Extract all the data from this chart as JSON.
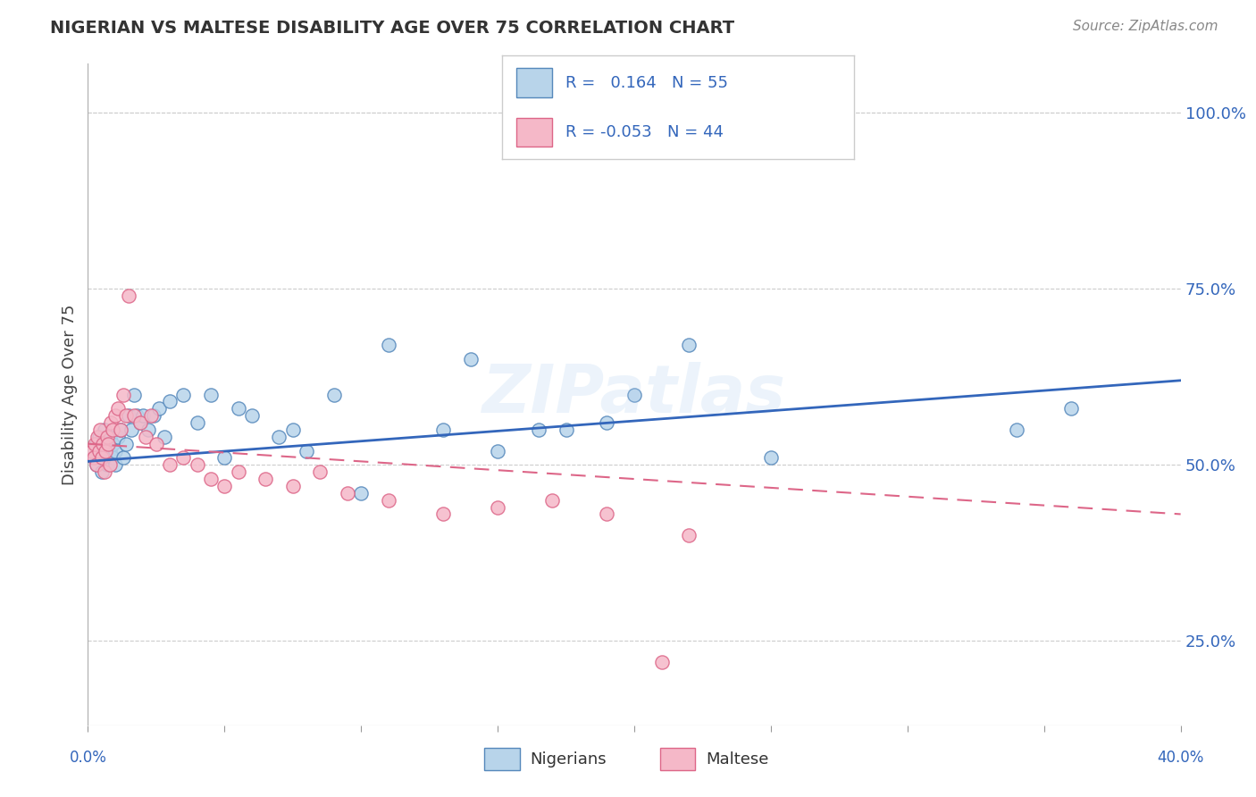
{
  "title": "NIGERIAN VS MALTESE DISABILITY AGE OVER 75 CORRELATION CHART",
  "source": "Source: ZipAtlas.com",
  "ylabel": "Disability Age Over 75",
  "xlim": [
    0.0,
    40.0
  ],
  "ylim": [
    13.0,
    107.0
  ],
  "yticks": [
    25.0,
    50.0,
    75.0,
    100.0
  ],
  "ytick_labels": [
    "25.0%",
    "50.0%",
    "75.0%",
    "100.0%"
  ],
  "nigerian_color": "#b8d4ea",
  "maltese_color": "#f5b8c8",
  "nigerian_edge": "#5588bb",
  "maltese_edge": "#dd6688",
  "trend_blue": "#3366bb",
  "trend_pink": "#dd6688",
  "r_nigerian": 0.164,
  "n_nigerian": 55,
  "r_maltese": -0.053,
  "n_maltese": 44,
  "legend_label_nigerian": "Nigerians",
  "legend_label_maltese": "Maltese",
  "background_color": "#ffffff",
  "watermark": "ZIPatlas",
  "nigerian_x": [
    0.2,
    0.3,
    0.3,
    0.4,
    0.4,
    0.5,
    0.5,
    0.6,
    0.6,
    0.7,
    0.7,
    0.8,
    0.8,
    0.9,
    0.9,
    1.0,
    1.0,
    1.1,
    1.2,
    1.3,
    1.4,
    1.5,
    1.6,
    1.7,
    1.8,
    1.9,
    2.0,
    2.2,
    2.4,
    2.6,
    2.8,
    3.0,
    3.5,
    4.0,
    4.5,
    5.0,
    5.5,
    6.0,
    7.0,
    7.5,
    8.0,
    9.0,
    10.0,
    11.0,
    13.0,
    14.0,
    15.0,
    16.5,
    17.5,
    19.0,
    20.0,
    22.0,
    25.0,
    34.0,
    36.0
  ],
  "nigerian_y": [
    51,
    50,
    53,
    52,
    54,
    49,
    53,
    51,
    55,
    50,
    53,
    52,
    54,
    51,
    53,
    50,
    52,
    54,
    55,
    51,
    53,
    57,
    55,
    60,
    57,
    56,
    57,
    55,
    57,
    58,
    54,
    59,
    60,
    56,
    60,
    51,
    58,
    57,
    54,
    55,
    52,
    60,
    46,
    67,
    55,
    65,
    52,
    55,
    55,
    56,
    60,
    67,
    51,
    55,
    58
  ],
  "maltese_x": [
    0.15,
    0.2,
    0.25,
    0.3,
    0.35,
    0.4,
    0.45,
    0.5,
    0.55,
    0.6,
    0.65,
    0.7,
    0.75,
    0.8,
    0.85,
    0.9,
    1.0,
    1.1,
    1.2,
    1.3,
    1.4,
    1.5,
    1.7,
    1.9,
    2.1,
    2.3,
    2.5,
    3.0,
    3.5,
    4.0,
    4.5,
    5.0,
    5.5,
    6.5,
    7.5,
    8.5,
    9.5,
    11.0,
    13.0,
    15.0,
    17.0,
    19.0,
    21.0,
    22.0
  ],
  "maltese_y": [
    52,
    51,
    53,
    50,
    54,
    52,
    55,
    51,
    53,
    49,
    52,
    54,
    53,
    50,
    56,
    55,
    57,
    58,
    55,
    60,
    57,
    74,
    57,
    56,
    54,
    57,
    53,
    50,
    51,
    50,
    48,
    47,
    49,
    48,
    47,
    49,
    46,
    45,
    43,
    44,
    45,
    43,
    22,
    40
  ],
  "trend_nig_x0": 0.0,
  "trend_nig_y0": 50.5,
  "trend_nig_x1": 40.0,
  "trend_nig_y1": 62.0,
  "trend_mal_x0": 0.0,
  "trend_mal_y0": 53.0,
  "trend_mal_x1": 40.0,
  "trend_mal_y1": 43.0
}
